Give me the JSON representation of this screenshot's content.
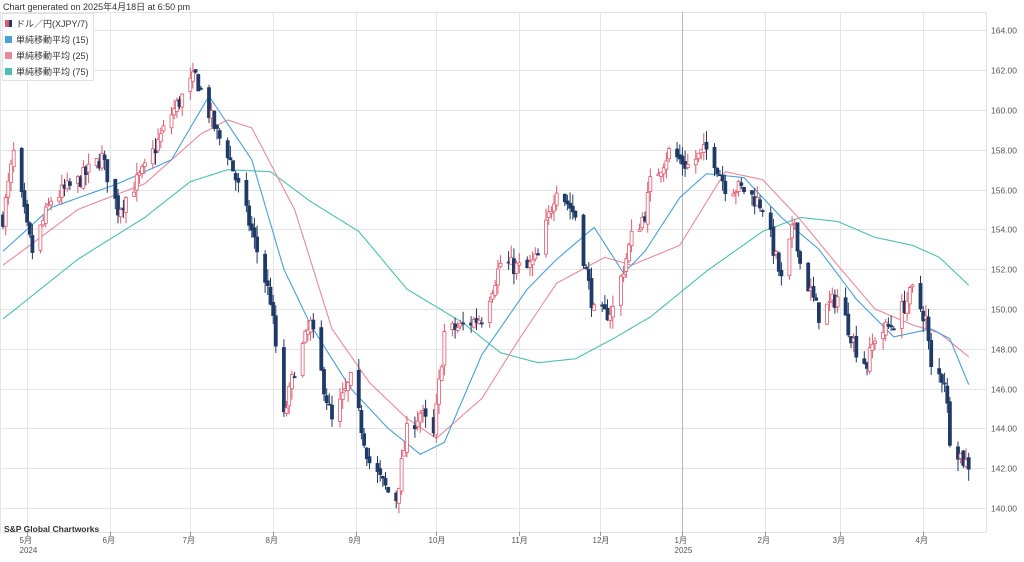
{
  "header": {
    "generated": "Chart generated on 2025年4月18日 at 6:50 pm"
  },
  "footer": {
    "source": "S&P Global Chartworks"
  },
  "legend": [
    {
      "label": "ドル／円(XJPY/7)",
      "icon": "candlestick-swatch"
    },
    {
      "label": "単純移動平均 (15)",
      "color": "#4a9fd8"
    },
    {
      "label": "単純移動平均 (25)",
      "color": "#e98a9a"
    },
    {
      "label": "単純移動平均 (75)",
      "color": "#4bbfb0"
    }
  ],
  "colors": {
    "up": "#e05a6d",
    "down": "#1f3a66",
    "sma15": "#4a9fd8",
    "sma25": "#e98a9a",
    "sma75": "#4bbfb0",
    "grid": "#e4e4e4",
    "divider": "#b8b8b8"
  },
  "chart_data": {
    "type": "candlestick",
    "title": "ドル／円(XJPY/7)",
    "ylim": [
      139,
      165
    ],
    "yticks": [
      "140.00",
      "142.00",
      "144.00",
      "146.00",
      "148.00",
      "150.00",
      "152.00",
      "154.00",
      "156.00",
      "158.00",
      "160.00",
      "162.00",
      "164.00"
    ],
    "xtick_labels": [
      {
        "month": "5月",
        "year": "2024"
      },
      {
        "month": "6月",
        "year": ""
      },
      {
        "month": "7月",
        "year": ""
      },
      {
        "month": "8月",
        "year": ""
      },
      {
        "month": "9月",
        "year": ""
      },
      {
        "month": "10月",
        "year": ""
      },
      {
        "month": "11月",
        "year": ""
      },
      {
        "month": "12月",
        "year": ""
      },
      {
        "month": "1月",
        "year": "2025"
      },
      {
        "month": "2月",
        "year": ""
      },
      {
        "month": "3月",
        "year": ""
      },
      {
        "month": "4月",
        "year": ""
      }
    ],
    "x_range": [
      "2024-04-22",
      "2025-04-18"
    ],
    "close_anchors": [
      [
        "2024-04-22",
        154.6
      ],
      [
        "2024-04-26",
        157.8
      ],
      [
        "2024-05-01",
        154.0
      ],
      [
        "2024-05-03",
        152.9
      ],
      [
        "2024-05-10",
        155.5
      ],
      [
        "2024-05-20",
        156.4
      ],
      [
        "2024-05-29",
        157.6
      ],
      [
        "2024-06-04",
        155.0
      ],
      [
        "2024-06-14",
        157.0
      ],
      [
        "2024-06-24",
        159.8
      ],
      [
        "2024-07-01",
        161.3
      ],
      [
        "2024-07-03",
        161.7
      ],
      [
        "2024-07-11",
        158.8
      ],
      [
        "2024-07-15",
        157.9
      ],
      [
        "2024-07-24",
        153.9
      ],
      [
        "2024-07-31",
        150.5
      ],
      [
        "2024-08-05",
        144.5
      ],
      [
        "2024-08-09",
        147.0
      ],
      [
        "2024-08-15",
        149.2
      ],
      [
        "2024-08-23",
        144.3
      ],
      [
        "2024-08-30",
        146.4
      ],
      [
        "2024-09-06",
        142.3
      ],
      [
        "2024-09-13",
        140.8
      ],
      [
        "2024-09-16",
        140.5
      ],
      [
        "2024-09-20",
        143.8
      ],
      [
        "2024-09-25",
        144.8
      ],
      [
        "2024-09-30",
        143.6
      ],
      [
        "2024-10-04",
        148.8
      ],
      [
        "2024-10-10",
        149.1
      ],
      [
        "2024-10-18",
        149.6
      ],
      [
        "2024-10-25",
        152.3
      ],
      [
        "2024-10-31",
        152.1
      ],
      [
        "2024-11-04",
        152.0
      ],
      [
        "2024-11-08",
        152.6
      ],
      [
        "2024-11-15",
        156.2
      ],
      [
        "2024-11-22",
        154.7
      ],
      [
        "2024-11-29",
        149.8
      ],
      [
        "2024-12-03",
        149.7
      ],
      [
        "2024-12-06",
        150.0
      ],
      [
        "2024-12-13",
        153.6
      ],
      [
        "2024-12-18",
        154.8
      ],
      [
        "2024-12-20",
        156.3
      ],
      [
        "2024-12-27",
        157.9
      ],
      [
        "2025-01-03",
        157.2
      ],
      [
        "2025-01-10",
        158.0
      ],
      [
        "2025-01-13",
        157.5
      ],
      [
        "2025-01-17",
        156.2
      ],
      [
        "2025-01-24",
        156.0
      ],
      [
        "2025-01-31",
        155.2
      ],
      [
        "2025-02-07",
        151.4
      ],
      [
        "2025-02-12",
        154.4
      ],
      [
        "2025-02-14",
        152.3
      ],
      [
        "2025-02-21",
        149.7
      ],
      [
        "2025-02-28",
        150.6
      ],
      [
        "2025-03-07",
        148.0
      ],
      [
        "2025-03-11",
        147.2
      ],
      [
        "2025-03-14",
        148.6
      ],
      [
        "2025-03-21",
        149.3
      ],
      [
        "2025-03-28",
        150.9
      ],
      [
        "2025-04-02",
        149.5
      ],
      [
        "2025-04-04",
        146.9
      ],
      [
        "2025-04-09",
        146.5
      ],
      [
        "2025-04-11",
        143.6
      ],
      [
        "2025-04-16",
        142.4
      ],
      [
        "2025-04-18",
        142.2
      ]
    ],
    "sma15_anchors": [
      [
        "2024-04-22",
        152.9
      ],
      [
        "2024-05-10",
        155.1
      ],
      [
        "2024-06-04",
        156.3
      ],
      [
        "2024-06-24",
        157.5
      ],
      [
        "2024-07-08",
        160.7
      ],
      [
        "2024-07-24",
        157.5
      ],
      [
        "2024-08-05",
        152.0
      ],
      [
        "2024-08-15",
        149.2
      ],
      [
        "2024-08-30",
        146.0
      ],
      [
        "2024-09-13",
        144.0
      ],
      [
        "2024-09-25",
        142.7
      ],
      [
        "2024-10-04",
        143.3
      ],
      [
        "2024-10-18",
        147.7
      ],
      [
        "2024-11-04",
        151.0
      ],
      [
        "2024-11-15",
        152.5
      ],
      [
        "2024-11-29",
        154.1
      ],
      [
        "2024-12-10",
        151.8
      ],
      [
        "2024-12-18",
        152.9
      ],
      [
        "2024-12-31",
        155.6
      ],
      [
        "2025-01-10",
        156.8
      ],
      [
        "2025-01-24",
        156.6
      ],
      [
        "2025-02-07",
        154.6
      ],
      [
        "2025-02-21",
        153.0
      ],
      [
        "2025-03-07",
        150.5
      ],
      [
        "2025-03-21",
        148.6
      ],
      [
        "2025-04-04",
        149.0
      ],
      [
        "2025-04-11",
        148.5
      ],
      [
        "2025-04-18",
        146.2
      ]
    ],
    "sma25_anchors": [
      [
        "2024-04-22",
        152.2
      ],
      [
        "2024-05-20",
        155.0
      ],
      [
        "2024-06-14",
        156.3
      ],
      [
        "2024-07-05",
        158.8
      ],
      [
        "2024-07-15",
        159.5
      ],
      [
        "2024-07-24",
        159.1
      ],
      [
        "2024-08-09",
        155.0
      ],
      [
        "2024-08-23",
        149.0
      ],
      [
        "2024-09-06",
        146.3
      ],
      [
        "2024-09-20",
        144.5
      ],
      [
        "2024-10-01",
        143.5
      ],
      [
        "2024-10-18",
        145.5
      ],
      [
        "2024-11-01",
        148.5
      ],
      [
        "2024-11-15",
        151.3
      ],
      [
        "2024-12-03",
        152.6
      ],
      [
        "2024-12-13",
        152.2
      ],
      [
        "2024-12-31",
        153.2
      ],
      [
        "2025-01-17",
        156.9
      ],
      [
        "2025-01-31",
        156.5
      ],
      [
        "2025-02-14",
        154.5
      ],
      [
        "2025-02-28",
        152.2
      ],
      [
        "2025-03-14",
        150.0
      ],
      [
        "2025-03-28",
        149.2
      ],
      [
        "2025-04-07",
        148.8
      ],
      [
        "2025-04-18",
        147.6
      ]
    ],
    "sma75_anchors": [
      [
        "2024-04-22",
        149.5
      ],
      [
        "2024-05-20",
        152.5
      ],
      [
        "2024-06-14",
        154.6
      ],
      [
        "2024-07-01",
        156.4
      ],
      [
        "2024-07-15",
        157.0
      ],
      [
        "2024-07-31",
        156.9
      ],
      [
        "2024-08-15",
        155.4
      ],
      [
        "2024-09-02",
        153.9
      ],
      [
        "2024-09-20",
        151.0
      ],
      [
        "2024-10-11",
        149.3
      ],
      [
        "2024-10-25",
        147.8
      ],
      [
        "2024-11-08",
        147.3
      ],
      [
        "2024-11-22",
        147.5
      ],
      [
        "2024-12-06",
        148.5
      ],
      [
        "2024-12-20",
        149.6
      ],
      [
        "2025-01-10",
        151.9
      ],
      [
        "2025-01-31",
        153.9
      ],
      [
        "2025-02-14",
        154.6
      ],
      [
        "2025-02-28",
        154.4
      ],
      [
        "2025-03-14",
        153.6
      ],
      [
        "2025-03-28",
        153.2
      ],
      [
        "2025-04-07",
        152.6
      ],
      [
        "2025-04-18",
        151.2
      ]
    ]
  }
}
